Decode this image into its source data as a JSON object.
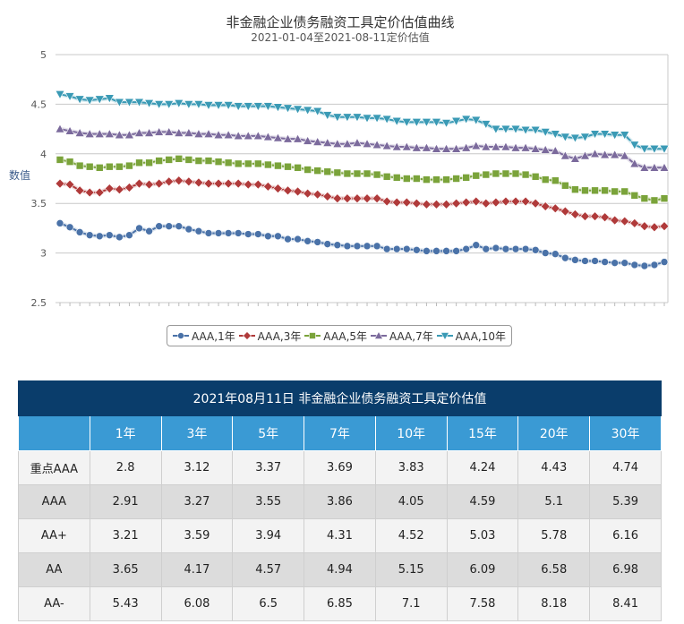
{
  "chart_data": {
    "type": "line",
    "title": "非金融企业债务融资工具定价估值曲线",
    "subtitle": "2021-01-04至2021-08-11定价估值",
    "ylabel": "数值",
    "ylim": [
      2.5,
      5
    ],
    "yticks": [
      "2.5",
      "3",
      "3.5",
      "4",
      "4.5",
      "5"
    ],
    "grid": true,
    "legend_position": "bottom",
    "series": [
      {
        "name": "AAA,1年",
        "color": "#4a72a8",
        "marker": "circle",
        "values": [
          3.3,
          3.26,
          3.21,
          3.18,
          3.17,
          3.18,
          3.16,
          3.18,
          3.25,
          3.22,
          3.27,
          3.27,
          3.27,
          3.24,
          3.22,
          3.2,
          3.2,
          3.2,
          3.2,
          3.19,
          3.19,
          3.17,
          3.17,
          3.14,
          3.14,
          3.12,
          3.11,
          3.09,
          3.08,
          3.07,
          3.07,
          3.07,
          3.07,
          3.04,
          3.04,
          3.04,
          3.03,
          3.02,
          3.02,
          3.02,
          3.02,
          3.04,
          3.08,
          3.04,
          3.05,
          3.04,
          3.04,
          3.04,
          3.03,
          3.0,
          2.99,
          2.95,
          2.93,
          2.92,
          2.92,
          2.91,
          2.9,
          2.9,
          2.88,
          2.87,
          2.88,
          2.91
        ]
      },
      {
        "name": "AAA,3年",
        "color": "#b03a3a",
        "marker": "diamond",
        "values": [
          3.7,
          3.69,
          3.63,
          3.61,
          3.61,
          3.65,
          3.64,
          3.66,
          3.7,
          3.69,
          3.7,
          3.72,
          3.73,
          3.72,
          3.71,
          3.7,
          3.7,
          3.7,
          3.7,
          3.69,
          3.69,
          3.67,
          3.65,
          3.63,
          3.62,
          3.6,
          3.59,
          3.57,
          3.55,
          3.55,
          3.55,
          3.55,
          3.55,
          3.52,
          3.51,
          3.51,
          3.5,
          3.49,
          3.49,
          3.49,
          3.5,
          3.51,
          3.52,
          3.5,
          3.51,
          3.52,
          3.52,
          3.52,
          3.5,
          3.47,
          3.45,
          3.42,
          3.39,
          3.37,
          3.37,
          3.36,
          3.33,
          3.32,
          3.3,
          3.27,
          3.26,
          3.27
        ]
      },
      {
        "name": "AAA,5年",
        "color": "#7aa33a",
        "marker": "square",
        "values": [
          3.94,
          3.92,
          3.88,
          3.87,
          3.86,
          3.87,
          3.87,
          3.88,
          3.91,
          3.91,
          3.93,
          3.94,
          3.95,
          3.94,
          3.93,
          3.93,
          3.92,
          3.91,
          3.9,
          3.9,
          3.9,
          3.89,
          3.88,
          3.87,
          3.86,
          3.84,
          3.83,
          3.82,
          3.81,
          3.8,
          3.8,
          3.8,
          3.79,
          3.77,
          3.76,
          3.75,
          3.75,
          3.74,
          3.74,
          3.74,
          3.75,
          3.76,
          3.78,
          3.79,
          3.8,
          3.8,
          3.8,
          3.79,
          3.77,
          3.74,
          3.73,
          3.68,
          3.64,
          3.63,
          3.63,
          3.63,
          3.62,
          3.62,
          3.58,
          3.55,
          3.53,
          3.55
        ]
      },
      {
        "name": "AAA,7年",
        "color": "#7b6a9c",
        "marker": "triangle-up",
        "values": [
          4.25,
          4.23,
          4.21,
          4.2,
          4.2,
          4.2,
          4.19,
          4.19,
          4.21,
          4.21,
          4.22,
          4.22,
          4.21,
          4.21,
          4.2,
          4.2,
          4.19,
          4.19,
          4.18,
          4.18,
          4.18,
          4.17,
          4.16,
          4.15,
          4.15,
          4.13,
          4.12,
          4.11,
          4.1,
          4.1,
          4.11,
          4.1,
          4.09,
          4.08,
          4.07,
          4.07,
          4.06,
          4.06,
          4.05,
          4.05,
          4.05,
          4.06,
          4.08,
          4.07,
          4.07,
          4.07,
          4.06,
          4.06,
          4.05,
          4.04,
          4.03,
          3.98,
          3.95,
          3.98,
          4.0,
          3.99,
          3.99,
          3.98,
          3.9,
          3.86,
          3.86,
          3.86
        ]
      },
      {
        "name": "AAA,10年",
        "color": "#3a9ab5",
        "marker": "triangle-down",
        "values": [
          4.6,
          4.58,
          4.55,
          4.54,
          4.55,
          4.56,
          4.52,
          4.52,
          4.52,
          4.51,
          4.5,
          4.5,
          4.51,
          4.5,
          4.5,
          4.49,
          4.49,
          4.49,
          4.48,
          4.48,
          4.48,
          4.48,
          4.47,
          4.46,
          4.45,
          4.44,
          4.43,
          4.39,
          4.37,
          4.37,
          4.37,
          4.36,
          4.36,
          4.35,
          4.33,
          4.32,
          4.32,
          4.32,
          4.32,
          4.31,
          4.33,
          4.35,
          4.34,
          4.3,
          4.25,
          4.25,
          4.25,
          4.24,
          4.24,
          4.22,
          4.2,
          4.17,
          4.16,
          4.17,
          4.2,
          4.2,
          4.19,
          4.19,
          4.09,
          4.05,
          4.05,
          4.05
        ]
      }
    ]
  },
  "table": {
    "title": "2021年08月11日  非金融企业债务融资工具定价估值",
    "headers": [
      "",
      "1年",
      "3年",
      "5年",
      "7年",
      "10年",
      "15年",
      "20年",
      "30年"
    ],
    "rows": [
      {
        "label": "重点AAA",
        "values": [
          "2.8",
          "3.12",
          "3.37",
          "3.69",
          "3.83",
          "4.24",
          "4.43",
          "4.74"
        ]
      },
      {
        "label": "AAA",
        "values": [
          "2.91",
          "3.27",
          "3.55",
          "3.86",
          "4.05",
          "4.59",
          "5.1",
          "5.39"
        ]
      },
      {
        "label": "AA+",
        "values": [
          "3.21",
          "3.59",
          "3.94",
          "4.31",
          "4.52",
          "5.03",
          "5.78",
          "6.16"
        ]
      },
      {
        "label": "AA",
        "values": [
          "3.65",
          "4.17",
          "4.57",
          "4.94",
          "5.15",
          "6.09",
          "6.58",
          "6.98"
        ]
      },
      {
        "label": "AA-",
        "values": [
          "5.43",
          "6.08",
          "6.5",
          "6.85",
          "7.1",
          "7.58",
          "8.18",
          "8.41"
        ]
      }
    ]
  }
}
